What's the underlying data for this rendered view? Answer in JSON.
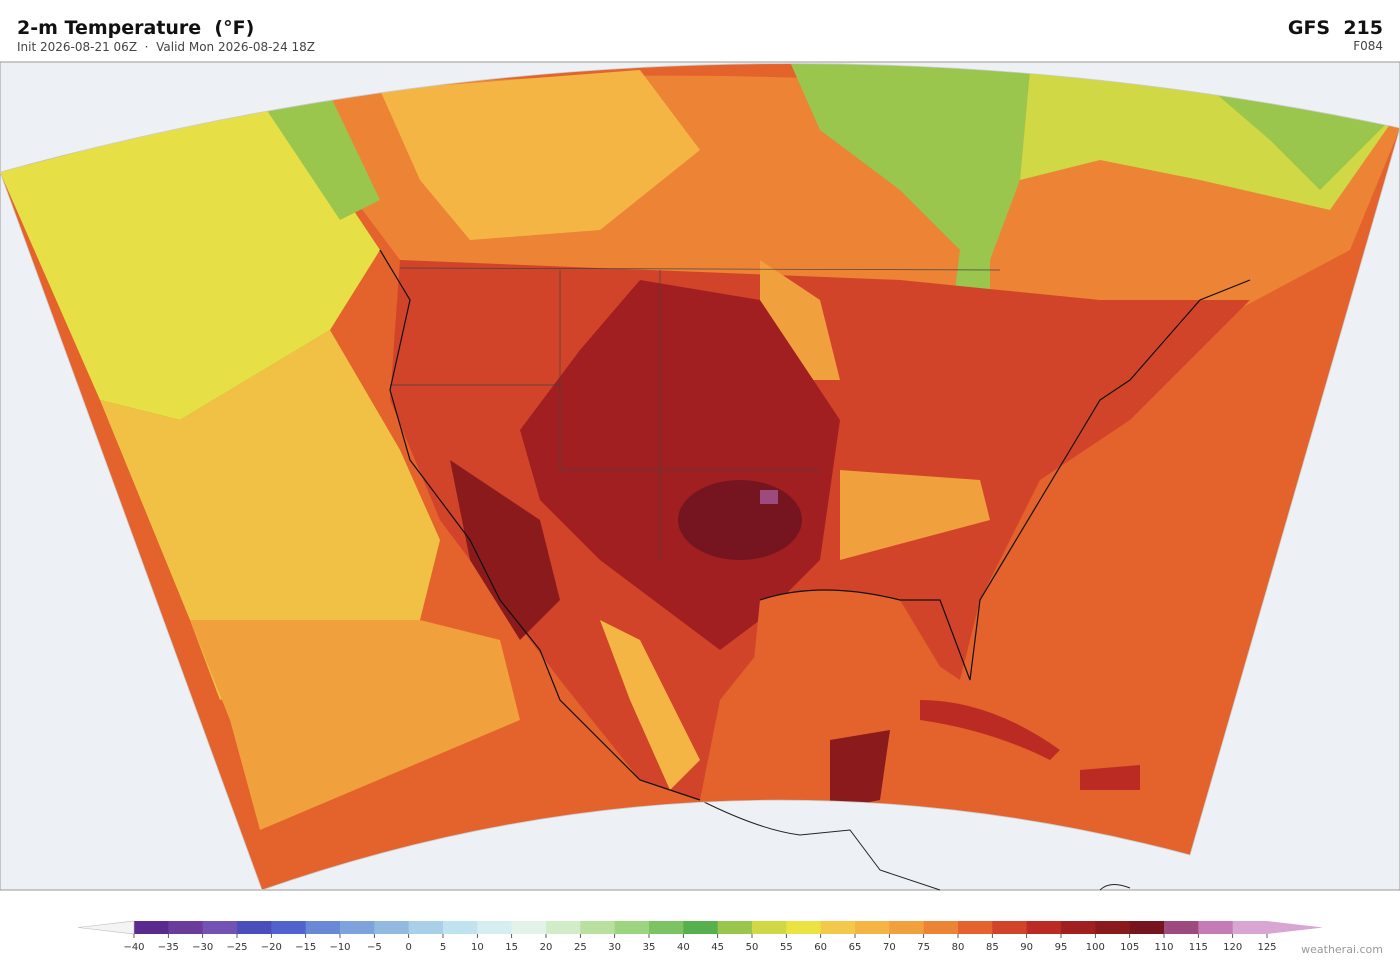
{
  "header": {
    "title": "2-m Temperature  (°F)",
    "subtitle": "Init 2026-08-21 06Z  ·  Valid Mon 2026-08-24 18Z",
    "model": "GFS  215",
    "forecast_hour": "F084"
  },
  "colorbar": {
    "ticks": [
      {
        "value": -40,
        "label": "−40"
      },
      {
        "value": -35,
        "label": "−35"
      },
      {
        "value": -30,
        "label": "−30"
      },
      {
        "value": -25,
        "label": "−25"
      },
      {
        "value": -20,
        "label": "−20"
      },
      {
        "value": -15,
        "label": "−15"
      },
      {
        "value": -10,
        "label": "−10"
      },
      {
        "value": -5,
        "label": "−5"
      },
      0,
      5,
      10,
      15,
      20,
      25,
      30,
      35,
      40,
      45,
      50,
      55,
      60,
      65,
      70,
      75,
      80,
      85,
      90,
      95,
      100,
      105,
      110,
      115,
      120,
      125
    ],
    "colors": [
      "#5a2a8f",
      "#6b3c9b",
      "#7452b3",
      "#4b4dbd",
      "#5262cf",
      "#6a88d6",
      "#7ea3dc",
      "#92badf",
      "#a9d0e8",
      "#c1e2ef",
      "#d6edf2",
      "#e4f3ea",
      "#d2ecc8",
      "#b9e09e",
      "#9dd47f",
      "#7cc463",
      "#55b04d",
      "#9ac64e",
      "#d1d845",
      "#ebe342",
      "#f2c94a",
      "#f4b545",
      "#f0a03d",
      "#ec8335",
      "#e4622c",
      "#d2442a",
      "#bb2b24",
      "#a11f20",
      "#8a1a1c",
      "#761520",
      "#9d4a7f",
      "#c47bb6",
      "#d9a5d2"
    ],
    "extend_colors": [
      "#f4f4f4",
      "#d9a5d2"
    ]
  },
  "footer": {
    "credit": "weatherai.com"
  }
}
